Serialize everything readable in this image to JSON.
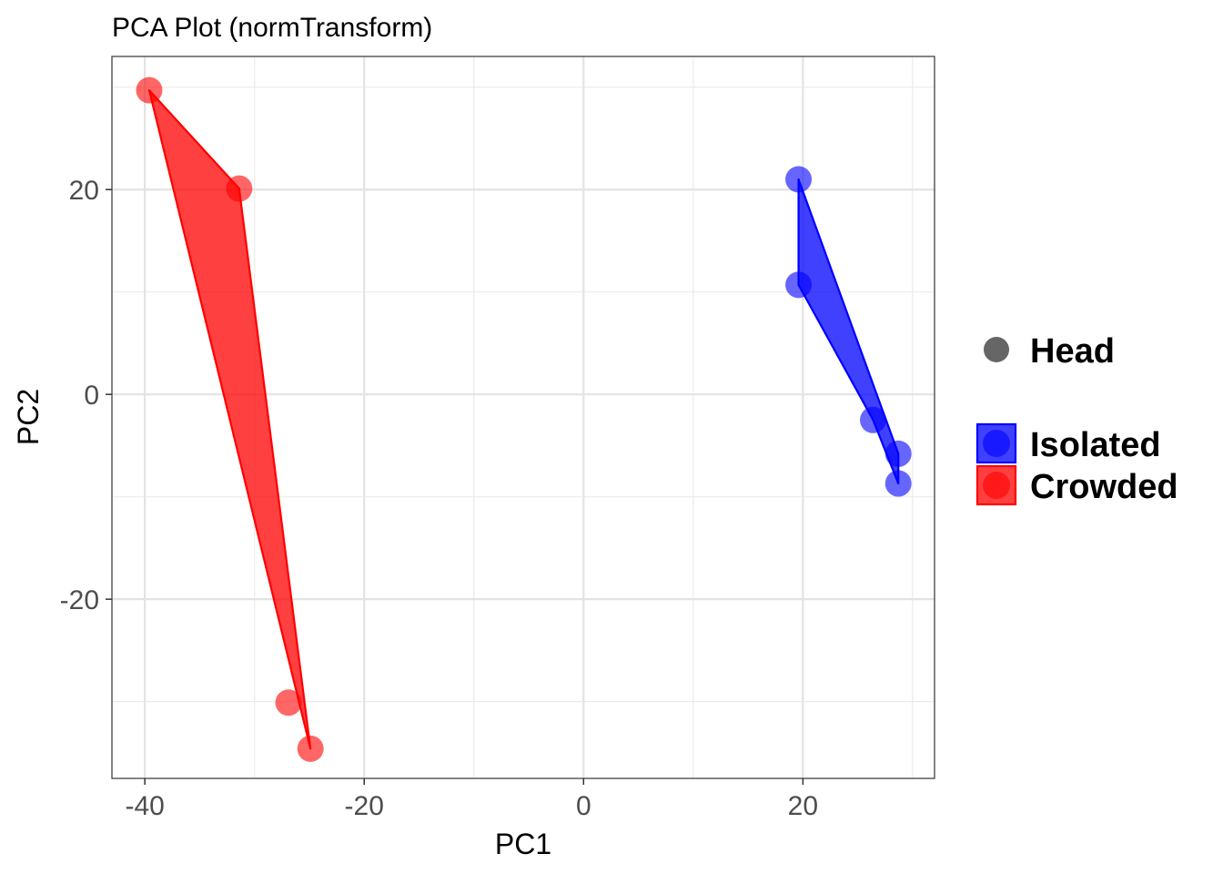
{
  "chart_data": {
    "type": "scatter",
    "title": "PCA Plot (normTransform)",
    "xlabel": "PC1",
    "ylabel": "PC2",
    "xlim": [
      -43,
      32
    ],
    "ylim": [
      -37.5,
      33
    ],
    "xticks": [
      -40,
      -20,
      0,
      20
    ],
    "yticks": [
      20,
      0,
      -20
    ],
    "x_tick_labels": [
      "-40",
      "-20",
      "0",
      "20"
    ],
    "y_tick_labels": [
      "20",
      "0",
      "-20"
    ],
    "grid": true,
    "legend_position": "right",
    "shape_legend": {
      "label": "Head",
      "color": "#666666"
    },
    "series": [
      {
        "name": "Isolated",
        "color": "#0000ff",
        "points": [
          [
            19.6,
            21.0
          ],
          [
            19.6,
            10.7
          ],
          [
            26.4,
            -2.5
          ],
          [
            28.7,
            -5.8
          ],
          [
            28.7,
            -8.7
          ]
        ],
        "hull": [
          [
            19.6,
            21.0
          ],
          [
            19.6,
            10.7
          ],
          [
            26.4,
            -2.5
          ],
          [
            28.7,
            -8.7
          ],
          [
            28.7,
            -5.8
          ]
        ]
      },
      {
        "name": "Crowded",
        "color": "#ff0000",
        "points": [
          [
            -39.6,
            29.7
          ],
          [
            -31.4,
            20.1
          ],
          [
            -26.9,
            -30.1
          ],
          [
            -24.9,
            -34.6
          ]
        ],
        "hull": [
          [
            -39.6,
            29.7
          ],
          [
            -31.4,
            20.1
          ],
          [
            -24.9,
            -34.6
          ]
        ]
      }
    ]
  }
}
